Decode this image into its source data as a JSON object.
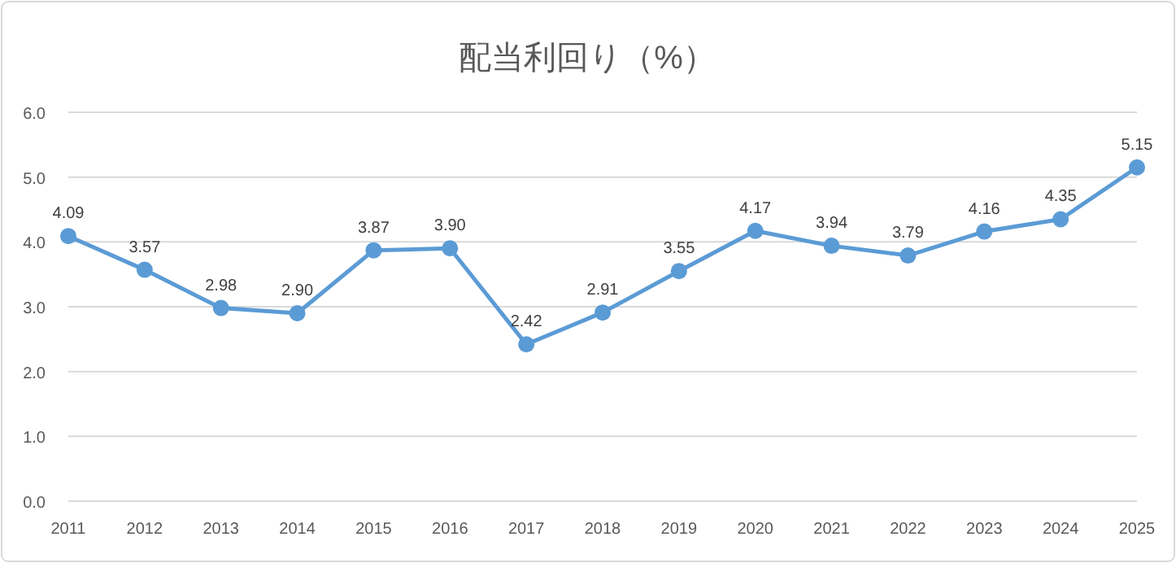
{
  "chart_data": {
    "type": "line",
    "title": "配当利回り（%）",
    "categories": [
      "2011",
      "2012",
      "2013",
      "2014",
      "2015",
      "2016",
      "2017",
      "2018",
      "2019",
      "2020",
      "2021",
      "2022",
      "2023",
      "2024",
      "2025"
    ],
    "series": [
      {
        "color": "#5b9bd5",
        "values": [
          4.09,
          3.57,
          2.98,
          2.9,
          3.87,
          3.9,
          2.42,
          2.91,
          3.55,
          4.17,
          3.94,
          3.79,
          4.16,
          4.35,
          5.15
        ],
        "value_labels": [
          "4.09",
          "3.57",
          "2.98",
          "2.90",
          "3.87",
          "3.90",
          "2.42",
          "2.91",
          "3.55",
          "4.17",
          "3.94",
          "3.79",
          "4.16",
          "4.35",
          "5.15"
        ]
      }
    ],
    "ylim": [
      0,
      6
    ],
    "yticks": [
      {
        "value": 0,
        "label": "0.0"
      },
      {
        "value": 1,
        "label": "1.0"
      },
      {
        "value": 2,
        "label": "2.0"
      },
      {
        "value": 3,
        "label": "3.0"
      },
      {
        "value": 4,
        "label": "4.0"
      },
      {
        "value": 5,
        "label": "5.0"
      },
      {
        "value": 6,
        "label": "6.0"
      }
    ],
    "grid": "y",
    "marker": "circle",
    "line_style": "solid"
  }
}
